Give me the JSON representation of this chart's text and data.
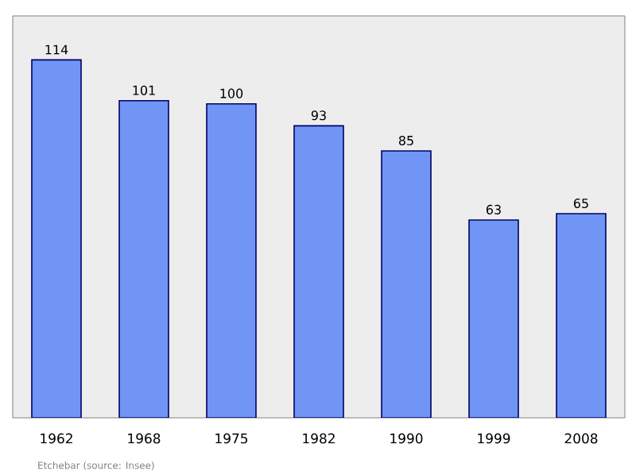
{
  "chart_data": {
    "type": "bar",
    "categories": [
      "1962",
      "1968",
      "1975",
      "1982",
      "1990",
      "1999",
      "2008"
    ],
    "values": [
      114,
      101,
      100,
      93,
      85,
      63,
      65
    ],
    "color": "#7095f5",
    "ylim": [
      0,
      128
    ],
    "data_labels": true,
    "grid": false,
    "annotations": [
      "Etchebar    (source: Insee)"
    ]
  }
}
